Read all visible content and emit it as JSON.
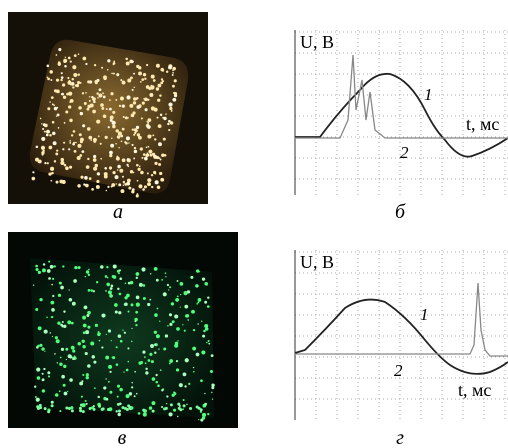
{
  "panels": [
    {
      "label": "а"
    },
    {
      "label": "б",
      "y_axis_label": "U, В",
      "x_axis_label": "t, мс",
      "curve_labels": [
        "1",
        "2"
      ]
    },
    {
      "label": "в"
    },
    {
      "label": "г",
      "y_axis_label": "U, В",
      "x_axis_label": "t, мс",
      "curve_labels": [
        "1",
        "2"
      ]
    }
  ]
}
